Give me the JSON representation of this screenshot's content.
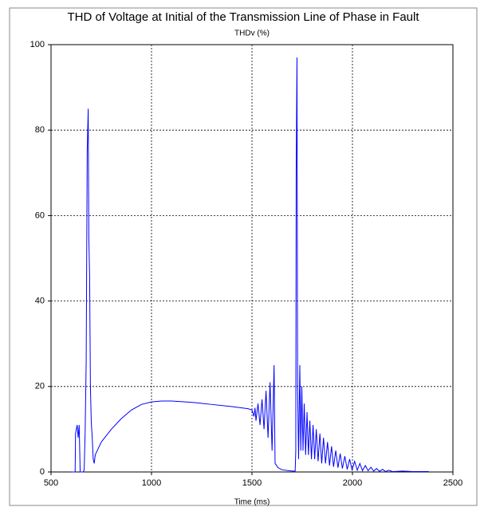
{
  "chart_data": {
    "type": "line",
    "title": "THD of Voltage at Initial of the Transmission Line of Phase in Fault",
    "ylabel": "THDv (%)",
    "xlabel": "Time (ms)",
    "x": [
      600,
      620,
      622,
      630,
      635,
      640,
      645,
      660,
      665,
      670,
      675,
      680,
      685,
      688,
      692,
      696,
      700,
      705,
      710,
      715,
      720,
      730,
      750,
      800,
      850,
      900,
      950,
      1000,
      1050,
      1100,
      1200,
      1300,
      1400,
      1480,
      1500,
      1510,
      1515,
      1520,
      1530,
      1540,
      1550,
      1560,
      1570,
      1580,
      1590,
      1600,
      1610,
      1615,
      1630,
      1650,
      1700,
      1715,
      1718,
      1720,
      1724,
      1727,
      1732,
      1738,
      1743,
      1748,
      1754,
      1760,
      1767,
      1774,
      1781,
      1788,
      1796,
      1804,
      1812,
      1820,
      1829,
      1838,
      1847,
      1856,
      1866,
      1876,
      1886,
      1896,
      1906,
      1917,
      1928,
      1939,
      1950,
      1962,
      1974,
      1986,
      1998,
      2011,
      2024,
      2037,
      2050,
      2064,
      2078,
      2092,
      2106,
      2120,
      2135,
      2150,
      2165,
      2180,
      2200,
      2250,
      2300,
      2380
    ],
    "values": [
      0,
      0,
      9,
      11,
      8,
      11,
      0,
      0,
      0.5,
      10,
      26,
      75,
      85,
      55,
      46,
      20,
      12,
      8,
      3,
      2,
      4,
      5,
      7,
      10,
      12.5,
      14.5,
      15.8,
      16.4,
      16.6,
      16.6,
      16.3,
      15.8,
      15.3,
      14.8,
      14.5,
      13,
      15,
      12,
      16,
      11,
      17,
      10,
      19,
      8,
      21,
      5,
      25,
      2,
      1,
      0.5,
      0.2,
      0.2,
      5,
      70,
      97,
      20,
      3,
      25,
      5,
      20,
      5,
      16,
      4,
      14,
      4,
      12,
      3,
      11,
      3,
      10,
      2.5,
      9,
      2,
      8,
      2,
      7,
      1.5,
      6,
      1.2,
      5,
      1,
      4.3,
      0.8,
      3.7,
      0.6,
      3,
      0.5,
      2.5,
      0.4,
      2,
      0.3,
      1.5,
      0.3,
      1.1,
      0.2,
      0.8,
      0.15,
      0.6,
      0.1,
      0.4,
      0.1,
      0.2,
      0.1,
      0.1
    ],
    "color": "#0000ff",
    "xlim": [
      500,
      2500
    ],
    "xticks": [
      500,
      1000,
      1500,
      2000,
      2500
    ],
    "ylim": [
      0,
      100
    ],
    "yticks": [
      0,
      20,
      40,
      60,
      80,
      100
    ],
    "grid": true
  }
}
